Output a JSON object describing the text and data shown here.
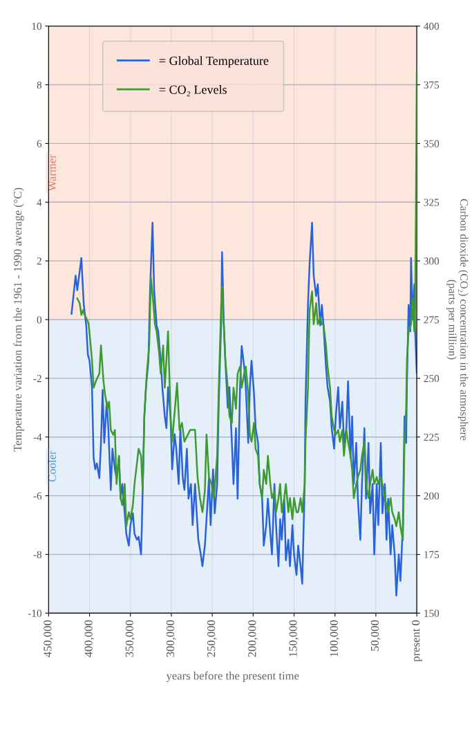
{
  "chart_data": {
    "type": "line",
    "xlabel": "years before the present time",
    "ylabel": "Temperature variation from the 1961 - 1990 average (°C)",
    "y2label": "Carbon dioxide (CO₂) concentration in the atmosphere\n(parts per million)",
    "xlim": [
      450000,
      0
    ],
    "xticks": [
      {
        "value": 450000,
        "label": "450,000"
      },
      {
        "value": 400000,
        "label": "400,000"
      },
      {
        "value": 350000,
        "label": "350,000"
      },
      {
        "value": 300000,
        "label": "300,000"
      },
      {
        "value": 250000,
        "label": "250,000"
      },
      {
        "value": 200000,
        "label": "200,000"
      },
      {
        "value": 150000,
        "label": "150,000"
      },
      {
        "value": 100000,
        "label": "100,000"
      },
      {
        "value": 50000,
        "label": "50,000"
      },
      {
        "value": 0,
        "label": "present 0"
      }
    ],
    "ylim": [
      -10,
      10
    ],
    "yticks": [
      -10,
      -8,
      -6,
      -4,
      -2,
      0,
      2,
      4,
      6,
      8,
      10
    ],
    "y2lim": [
      150,
      400
    ],
    "y2ticks": [
      150,
      175,
      200,
      225,
      250,
      275,
      300,
      325,
      350,
      375,
      400
    ],
    "grid": true,
    "legend": "top left",
    "line_style": "solid",
    "marker": "none",
    "bands": [
      {
        "axis": "y",
        "from": 0,
        "to": 10,
        "label": "Warmer",
        "color": "#fde6dc"
      },
      {
        "axis": "y",
        "from": -10,
        "to": 0,
        "label": "Cooler",
        "color": "#e4effa"
      }
    ],
    "series": [
      {
        "name": "= Global Temperature",
        "color": "#2a62d8",
        "x": [
          422000,
          417000,
          415000,
          410000,
          407000,
          404000,
          402000,
          400000,
          397000,
          395000,
          393000,
          391000,
          388000,
          386000,
          384000,
          382000,
          379000,
          377000,
          374000,
          372000,
          369000,
          367000,
          364000,
          362000,
          360000,
          357000,
          355000,
          352000,
          350000,
          347000,
          345000,
          342000,
          340000,
          337000,
          336000,
          333000,
          331000,
          328000,
          326000,
          323000,
          321000,
          318000,
          316000,
          313000,
          311000,
          308000,
          306000,
          304000,
          301000,
          299000,
          296000,
          294000,
          291000,
          289000,
          286000,
          284000,
          281000,
          279000,
          276000,
          274000,
          271000,
          269000,
          267000,
          264000,
          262000,
          259000,
          257000,
          254000,
          252000,
          249000,
          247000,
          244000,
          242000,
          239000,
          238000,
          236000,
          234000,
          231000,
          229000,
          226000,
          224000,
          221000,
          219000,
          216000,
          214000,
          211000,
          209000,
          206000,
          204000,
          202000,
          199000,
          197000,
          194000,
          192000,
          189000,
          187000,
          184000,
          182000,
          179000,
          177000,
          174000,
          172000,
          169000,
          167000,
          165000,
          162000,
          160000,
          157000,
          155000,
          152000,
          150000,
          147000,
          145000,
          142000,
          140000,
          137000,
          136000,
          133000,
          131000,
          128000,
          126000,
          123000,
          121000,
          118000,
          116000,
          114000,
          111000,
          109000,
          106000,
          104000,
          101000,
          99000,
          96000,
          94000,
          91000,
          89000,
          86000,
          84000,
          81000,
          79000,
          77000,
          74000,
          72000,
          69000,
          67000,
          64000,
          62000,
          59000,
          57000,
          54000,
          52000,
          49000,
          47000,
          44000,
          42000,
          39000,
          37000,
          35000,
          32000,
          30000,
          27000,
          25000,
          22000,
          20000,
          17000,
          15000,
          13000,
          12000,
          10000,
          8000,
          7000,
          5000,
          3000,
          2000,
          0
        ],
        "values": [
          0.2,
          1.5,
          1.0,
          2.1,
          0.5,
          -0.2,
          -1.2,
          -1.4,
          -2.3,
          -4.7,
          -5.1,
          -4.9,
          -5.4,
          -4.2,
          -2.4,
          -4.2,
          -2.8,
          -3.7,
          -5.8,
          -4.4,
          -5.1,
          -5.4,
          -4.7,
          -6.1,
          -5.6,
          -6.6,
          -7.3,
          -7.7,
          -7.0,
          -6.6,
          -7.3,
          -7.5,
          -7.4,
          -8.0,
          -7.0,
          -3.3,
          -2.3,
          -1.4,
          1.0,
          3.3,
          1.0,
          -0.2,
          -0.4,
          -1.4,
          -2.3,
          -3.3,
          -3.7,
          -2.3,
          -3.3,
          -5.1,
          -3.9,
          -4.4,
          -5.6,
          -3.7,
          -5.4,
          -5.8,
          -4.4,
          -6.1,
          -5.6,
          -7.0,
          -5.6,
          -6.6,
          -7.5,
          -8.0,
          -8.4,
          -7.7,
          -6.8,
          -5.4,
          -7.0,
          -5.1,
          -6.6,
          -5.6,
          -2.8,
          0.0,
          2.3,
          0.0,
          -1.4,
          -3.0,
          -2.3,
          -4.2,
          -5.6,
          -3.7,
          -6.1,
          -2.3,
          -0.9,
          -1.6,
          -2.3,
          -4.2,
          -2.3,
          -1.4,
          -2.5,
          -3.7,
          -4.2,
          -5.6,
          -6.1,
          -7.7,
          -7.0,
          -6.1,
          -7.3,
          -8.0,
          -5.6,
          -7.0,
          -8.4,
          -6.8,
          -7.5,
          -6.1,
          -8.2,
          -7.5,
          -8.4,
          -7.0,
          -8.0,
          -8.7,
          -7.7,
          -8.4,
          -9.0,
          -5.6,
          -2.8,
          0.5,
          1.9,
          3.3,
          1.5,
          0.8,
          1.2,
          -0.2,
          0.5,
          -0.2,
          -1.6,
          -2.3,
          -2.8,
          -3.7,
          -4.4,
          -3.3,
          -2.3,
          -3.7,
          -2.8,
          -4.2,
          -3.7,
          -2.1,
          -4.7,
          -3.3,
          -5.6,
          -4.2,
          -6.1,
          -7.5,
          -5.6,
          -3.7,
          -6.1,
          -4.2,
          -6.6,
          -5.6,
          -8.0,
          -5.6,
          -7.0,
          -4.2,
          -6.6,
          -5.6,
          -7.5,
          -6.1,
          -8.0,
          -7.0,
          -8.0,
          -9.4,
          -8.0,
          -8.9,
          -7.0,
          -3.3,
          -4.2,
          -2.1,
          0.5,
          -0.4,
          2.1,
          0.0,
          1.2,
          -0.4,
          -1.8
        ]
      },
      {
        "name": "= CO₂ Levels",
        "color": "#3c9a2e",
        "axis": "y2",
        "x": [
          415000,
          412000,
          410000,
          408000,
          406000,
          403000,
          401000,
          397000,
          395000,
          392000,
          388000,
          386000,
          383000,
          381000,
          378000,
          376000,
          374000,
          371000,
          369000,
          367000,
          364000,
          362000,
          360000,
          357000,
          355000,
          352000,
          350000,
          347000,
          345000,
          342000,
          340000,
          337000,
          335000,
          333000,
          332000,
          330000,
          327000,
          325000,
          322000,
          320000,
          318000,
          315000,
          313000,
          310000,
          308000,
          304000,
          301000,
          299000,
          293000,
          290000,
          287000,
          284000,
          277000,
          271000,
          268000,
          265000,
          262000,
          259000,
          257000,
          254000,
          251000,
          248000,
          244000,
          242000,
          239000,
          238000,
          236000,
          234000,
          231000,
          229000,
          226000,
          224000,
          221000,
          219000,
          216000,
          214000,
          211000,
          209000,
          206000,
          204000,
          202000,
          199000,
          197000,
          194000,
          192000,
          189000,
          187000,
          184000,
          182000,
          179000,
          177000,
          174000,
          172000,
          169000,
          167000,
          165000,
          162000,
          160000,
          157000,
          155000,
          152000,
          150000,
          147000,
          145000,
          142000,
          140000,
          137000,
          136000,
          133000,
          131000,
          128000,
          126000,
          123000,
          121000,
          118000,
          116000,
          114000,
          111000,
          109000,
          106000,
          104000,
          101000,
          99000,
          96000,
          94000,
          91000,
          89000,
          86000,
          84000,
          81000,
          79000,
          77000,
          74000,
          72000,
          69000,
          67000,
          64000,
          62000,
          59000,
          57000,
          54000,
          52000,
          49000,
          47000,
          44000,
          42000,
          39000,
          37000,
          35000,
          32000,
          30000,
          27000,
          25000,
          22000,
          20000,
          17000,
          15000,
          13000,
          12000,
          10000,
          7000,
          5000,
          3000,
          2000,
          1000,
          0
        ],
        "values": [
          284,
          282,
          277,
          279,
          277,
          275,
          273,
          258,
          246,
          249,
          252,
          264,
          249,
          243,
          237,
          240,
          228,
          226,
          228,
          205,
          217,
          199,
          196,
          205,
          187,
          193,
          190,
          196,
          205,
          214,
          220,
          217,
          202,
          234,
          240,
          252,
          264,
          293,
          282,
          273,
          270,
          261,
          252,
          264,
          246,
          270,
          234,
          223,
          248,
          228,
          231,
          223,
          228,
          228,
          208,
          199,
          193,
          202,
          226,
          208,
          205,
          199,
          217,
          246,
          282,
          289,
          273,
          258,
          246,
          234,
          231,
          246,
          237,
          252,
          255,
          246,
          252,
          255,
          243,
          226,
          223,
          231,
          220,
          217,
          205,
          199,
          211,
          205,
          217,
          205,
          199,
          202,
          193,
          199,
          205,
          193,
          199,
          205,
          193,
          199,
          190,
          199,
          193,
          193,
          199,
          193,
          205,
          223,
          246,
          279,
          287,
          273,
          282,
          273,
          276,
          273,
          273,
          264,
          255,
          246,
          234,
          228,
          226,
          228,
          223,
          228,
          217,
          228,
          223,
          217,
          211,
          199,
          205,
          208,
          211,
          217,
          223,
          205,
          199,
          205,
          211,
          205,
          208,
          205,
          208,
          205,
          199,
          196,
          193,
          199,
          193,
          190,
          187,
          193,
          187,
          181,
          223,
          237,
          258,
          270,
          273,
          284,
          270,
          282,
          323,
          380
        ]
      }
    ]
  }
}
